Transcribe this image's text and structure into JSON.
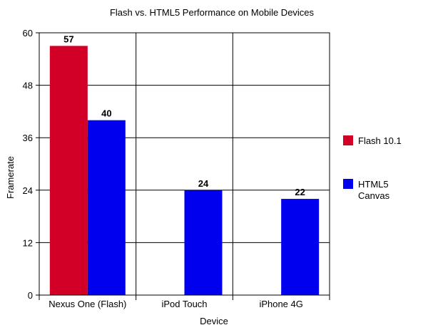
{
  "chart_data": {
    "type": "bar",
    "title": "Flash vs. HTML5 Performance on Mobile Devices",
    "xlabel": "Device",
    "ylabel": "Framerate",
    "ylim": [
      0,
      60
    ],
    "yticks": [
      0,
      12,
      24,
      36,
      48,
      60
    ],
    "categories": [
      "Nexus One (Flash)",
      "iPod Touch",
      "iPhone 4G"
    ],
    "series": [
      {
        "name": "Flash 10.1",
        "color": "#d20026",
        "values": [
          57,
          null,
          null
        ]
      },
      {
        "name": "HTML5 Canvas",
        "color": "#0000ee",
        "values": [
          40,
          24,
          22
        ]
      }
    ],
    "grid": true,
    "legend_position": "right"
  }
}
